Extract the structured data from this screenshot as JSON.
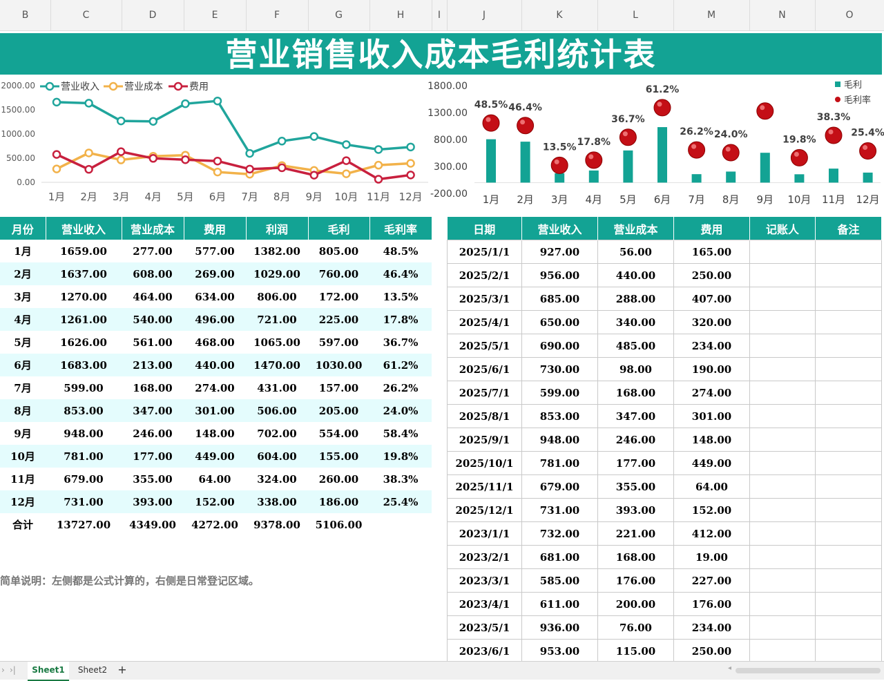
{
  "columns": [
    "B",
    "C",
    "D",
    "E",
    "F",
    "G",
    "H",
    "I",
    "J",
    "K",
    "L",
    "M",
    "N",
    "O"
  ],
  "title": "营业销售收入成本毛利统计表",
  "line_chart": {
    "type": "line",
    "categories": [
      "1月",
      "2月",
      "3月",
      "4月",
      "5月",
      "6月",
      "7月",
      "8月",
      "9月",
      "10月",
      "11月",
      "12月"
    ],
    "series": [
      {
        "name": "营业收入",
        "values": [
          1659,
          1637,
          1270,
          1261,
          1626,
          1683,
          599,
          853,
          948,
          781,
          679,
          731
        ],
        "color": "#20a59c"
      },
      {
        "name": "营业成本",
        "values": [
          277,
          608,
          464,
          540,
          561,
          213,
          168,
          347,
          246,
          177,
          355,
          393
        ],
        "color": "#f2b24a"
      },
      {
        "name": "费用",
        "values": [
          577,
          269,
          634,
          496,
          468,
          440,
          274,
          301,
          148,
          449,
          64,
          152
        ],
        "color": "#c8203e"
      }
    ],
    "y_ticks": [
      "2000.00",
      "1500.00",
      "1000.00",
      "500.00",
      "0.00"
    ],
    "ylim": [
      0,
      2000
    ],
    "legend": "top-left"
  },
  "combo_chart": {
    "type": "bar",
    "categories": [
      "1月",
      "2月",
      "3月",
      "4月",
      "5月",
      "6月",
      "7月",
      "8月",
      "9月",
      "10月",
      "11月",
      "12月"
    ],
    "series": [
      {
        "name": "毛利",
        "values": [
          805,
          760,
          172,
          225,
          597,
          1030,
          157,
          205,
          554,
          155,
          260,
          186
        ],
        "color": "#13a394"
      },
      {
        "name": "毛利率",
        "values": [
          48.5,
          46.4,
          13.5,
          17.8,
          36.7,
          61.2,
          26.2,
          24.0,
          58.4,
          19.8,
          38.3,
          25.4
        ],
        "color": "#c00000"
      }
    ],
    "data_labels": [
      "48.5%",
      "46.4%",
      "13.5%",
      "17.8%",
      "36.7%",
      "61.2%",
      "26.2%",
      "24.0%",
      "",
      "19.8%",
      "38.3%",
      "25.4%"
    ],
    "y_ticks": [
      "1800.00",
      "1300.00",
      "800.00",
      "300.00",
      "-200.00"
    ],
    "ylim": [
      -200,
      1800
    ],
    "legend": "top-right"
  },
  "left_table": {
    "headers": [
      "月份",
      "营业收入",
      "营业成本",
      "费用",
      "利润",
      "毛利",
      "毛利率"
    ],
    "rows": [
      [
        "1月",
        "1659.00",
        "277.00",
        "577.00",
        "1382.00",
        "805.00",
        "48.5%"
      ],
      [
        "2月",
        "1637.00",
        "608.00",
        "269.00",
        "1029.00",
        "760.00",
        "46.4%"
      ],
      [
        "3月",
        "1270.00",
        "464.00",
        "634.00",
        "806.00",
        "172.00",
        "13.5%"
      ],
      [
        "4月",
        "1261.00",
        "540.00",
        "496.00",
        "721.00",
        "225.00",
        "17.8%"
      ],
      [
        "5月",
        "1626.00",
        "561.00",
        "468.00",
        "1065.00",
        "597.00",
        "36.7%"
      ],
      [
        "6月",
        "1683.00",
        "213.00",
        "440.00",
        "1470.00",
        "1030.00",
        "61.2%"
      ],
      [
        "7月",
        "599.00",
        "168.00",
        "274.00",
        "431.00",
        "157.00",
        "26.2%"
      ],
      [
        "8月",
        "853.00",
        "347.00",
        "301.00",
        "506.00",
        "205.00",
        "24.0%"
      ],
      [
        "9月",
        "948.00",
        "246.00",
        "148.00",
        "702.00",
        "554.00",
        "58.4%"
      ],
      [
        "10月",
        "781.00",
        "177.00",
        "449.00",
        "604.00",
        "155.00",
        "19.8%"
      ],
      [
        "11月",
        "679.00",
        "355.00",
        "64.00",
        "324.00",
        "260.00",
        "38.3%"
      ],
      [
        "12月",
        "731.00",
        "393.00",
        "152.00",
        "338.00",
        "186.00",
        "25.4%"
      ]
    ],
    "total": [
      "合计",
      "13727.00",
      "4349.00",
      "4272.00",
      "9378.00",
      "5106.00",
      ""
    ]
  },
  "right_table": {
    "headers": [
      "日期",
      "营业收入",
      "营业成本",
      "费用",
      "记账人",
      "备注"
    ],
    "rows": [
      [
        "2025/1/1",
        "927.00",
        "56.00",
        "165.00",
        "",
        ""
      ],
      [
        "2025/2/1",
        "956.00",
        "440.00",
        "250.00",
        "",
        ""
      ],
      [
        "2025/3/1",
        "685.00",
        "288.00",
        "407.00",
        "",
        ""
      ],
      [
        "2025/4/1",
        "650.00",
        "340.00",
        "320.00",
        "",
        ""
      ],
      [
        "2025/5/1",
        "690.00",
        "485.00",
        "234.00",
        "",
        ""
      ],
      [
        "2025/6/1",
        "730.00",
        "98.00",
        "190.00",
        "",
        ""
      ],
      [
        "2025/7/1",
        "599.00",
        "168.00",
        "274.00",
        "",
        ""
      ],
      [
        "2025/8/1",
        "853.00",
        "347.00",
        "301.00",
        "",
        ""
      ],
      [
        "2025/9/1",
        "948.00",
        "246.00",
        "148.00",
        "",
        ""
      ],
      [
        "2025/10/1",
        "781.00",
        "177.00",
        "449.00",
        "",
        ""
      ],
      [
        "2025/11/1",
        "679.00",
        "355.00",
        "64.00",
        "",
        ""
      ],
      [
        "2025/12/1",
        "731.00",
        "393.00",
        "152.00",
        "",
        ""
      ],
      [
        "2023/1/1",
        "732.00",
        "221.00",
        "412.00",
        "",
        ""
      ],
      [
        "2023/2/1",
        "681.00",
        "168.00",
        "19.00",
        "",
        ""
      ],
      [
        "2023/3/1",
        "585.00",
        "176.00",
        "227.00",
        "",
        ""
      ],
      [
        "2023/4/1",
        "611.00",
        "200.00",
        "176.00",
        "",
        ""
      ],
      [
        "2023/5/1",
        "936.00",
        "76.00",
        "234.00",
        "",
        ""
      ],
      [
        "2023/6/1",
        "953.00",
        "115.00",
        "250.00",
        "",
        ""
      ]
    ]
  },
  "note": "简单说明：左侧都是公式计算的，右侧是日常登记区域。",
  "sheet_tabs": [
    "Sheet1",
    "Sheet2"
  ],
  "add_sheet_symbol": "+"
}
